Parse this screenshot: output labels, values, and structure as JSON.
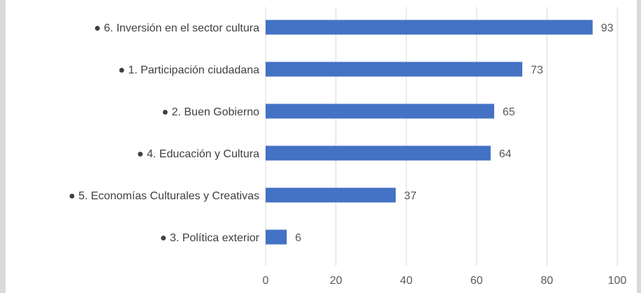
{
  "chart_data": {
    "type": "bar",
    "orientation": "horizontal",
    "categories": [
      "6. Inversión en el sector cultura",
      "1. Participación ciudadana",
      "2. Buen Gobierno",
      "4. Educación y Cultura",
      "5. Economías Culturales y Creativas",
      "3. Política exterior"
    ],
    "values": [
      93,
      73,
      65,
      64,
      37,
      6
    ],
    "xlim": [
      0,
      100
    ],
    "xticks": [
      0,
      20,
      40,
      60,
      80,
      100
    ],
    "grid": true,
    "bar_color": "#4472c4",
    "bullet": "●"
  }
}
